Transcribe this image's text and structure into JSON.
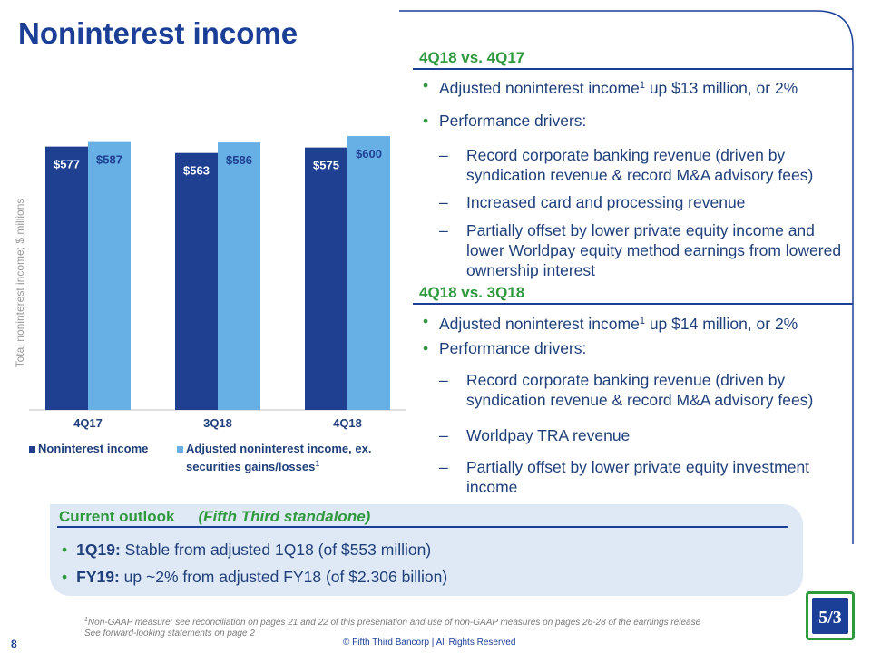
{
  "page": {
    "title": "Noninterest income",
    "page_number": "8",
    "copyright": "© Fifth Third Bancorp | All Rights Reserved",
    "footnote_line1": "Non-GAAP measure: see reconciliation on pages 21 and 22 of this presentation and use of non-GAAP measures on pages 26-28 of the earnings release",
    "footnote_marker": "1",
    "footnote_line2": "See forward-looking statements on page 2"
  },
  "colors": {
    "brand_blue": "#1b3f97",
    "dark_bar": "#1f3f91",
    "light_bar": "#67b0e6",
    "accent_green": "#2e9a3d",
    "outlook_bg": "#dfe9f6"
  },
  "section1": {
    "heading": "4Q18 vs. 4Q17",
    "bullet1_text": "Adjusted noninterest income",
    "bullet1_sup": "1",
    "bullet1_rest": " up $13 million, or 2%",
    "bullet2": "Performance drivers:",
    "dashes": [
      "Record corporate banking revenue (driven by syndication revenue & record M&A advisory fees)",
      "Increased card and processing revenue",
      "Partially offset by lower private equity income and lower Worldpay equity method earnings from lowered ownership interest"
    ]
  },
  "section2": {
    "heading": "4Q18 vs. 3Q18",
    "bullet1_text": "Adjusted noninterest income",
    "bullet1_sup": "1",
    "bullet1_rest": " up $14 million, or 2%",
    "bullet2": "Performance drivers:",
    "dashes": [
      "Record corporate banking revenue (driven by syndication revenue & record M&A advisory fees)",
      "Worldpay TRA revenue",
      "Partially offset by lower private equity investment income"
    ]
  },
  "dash_marker": "–",
  "bullet_marker": "•",
  "outlook": {
    "heading": "Current outlook",
    "subheading": "(Fifth Third standalone)",
    "items": [
      {
        "label": "1Q19:",
        "text": " Stable from adjusted 1Q18 (of $553 million)"
      },
      {
        "label": "FY19:",
        "text": " up ~2% from adjusted FY18 (of $2.306 billion)"
      }
    ]
  },
  "logo": {
    "icon": "fifth-third-logo-icon",
    "text": "5/3"
  },
  "chart_data": {
    "type": "bar",
    "title": "",
    "ylabel": "Total noninterest income; $ millions",
    "xlabel": "",
    "ylim": [
      0,
      620
    ],
    "categories": [
      "4Q17",
      "3Q18",
      "4Q18"
    ],
    "series": [
      {
        "name": "Noninterest income",
        "values": [
          577,
          563,
          575
        ],
        "labels": [
          "$577",
          "$563",
          "$575"
        ]
      },
      {
        "name": "Adjusted noninterest income, ex. securities gains/losses",
        "values": [
          587,
          586,
          600
        ],
        "labels": [
          "$587",
          "$586",
          "$600"
        ]
      }
    ],
    "legend_line1": "Adjusted noninterest income, ex.",
    "legend_line2": "securities gains/losses",
    "legend_sup": "1",
    "legend_position": "bottom"
  }
}
